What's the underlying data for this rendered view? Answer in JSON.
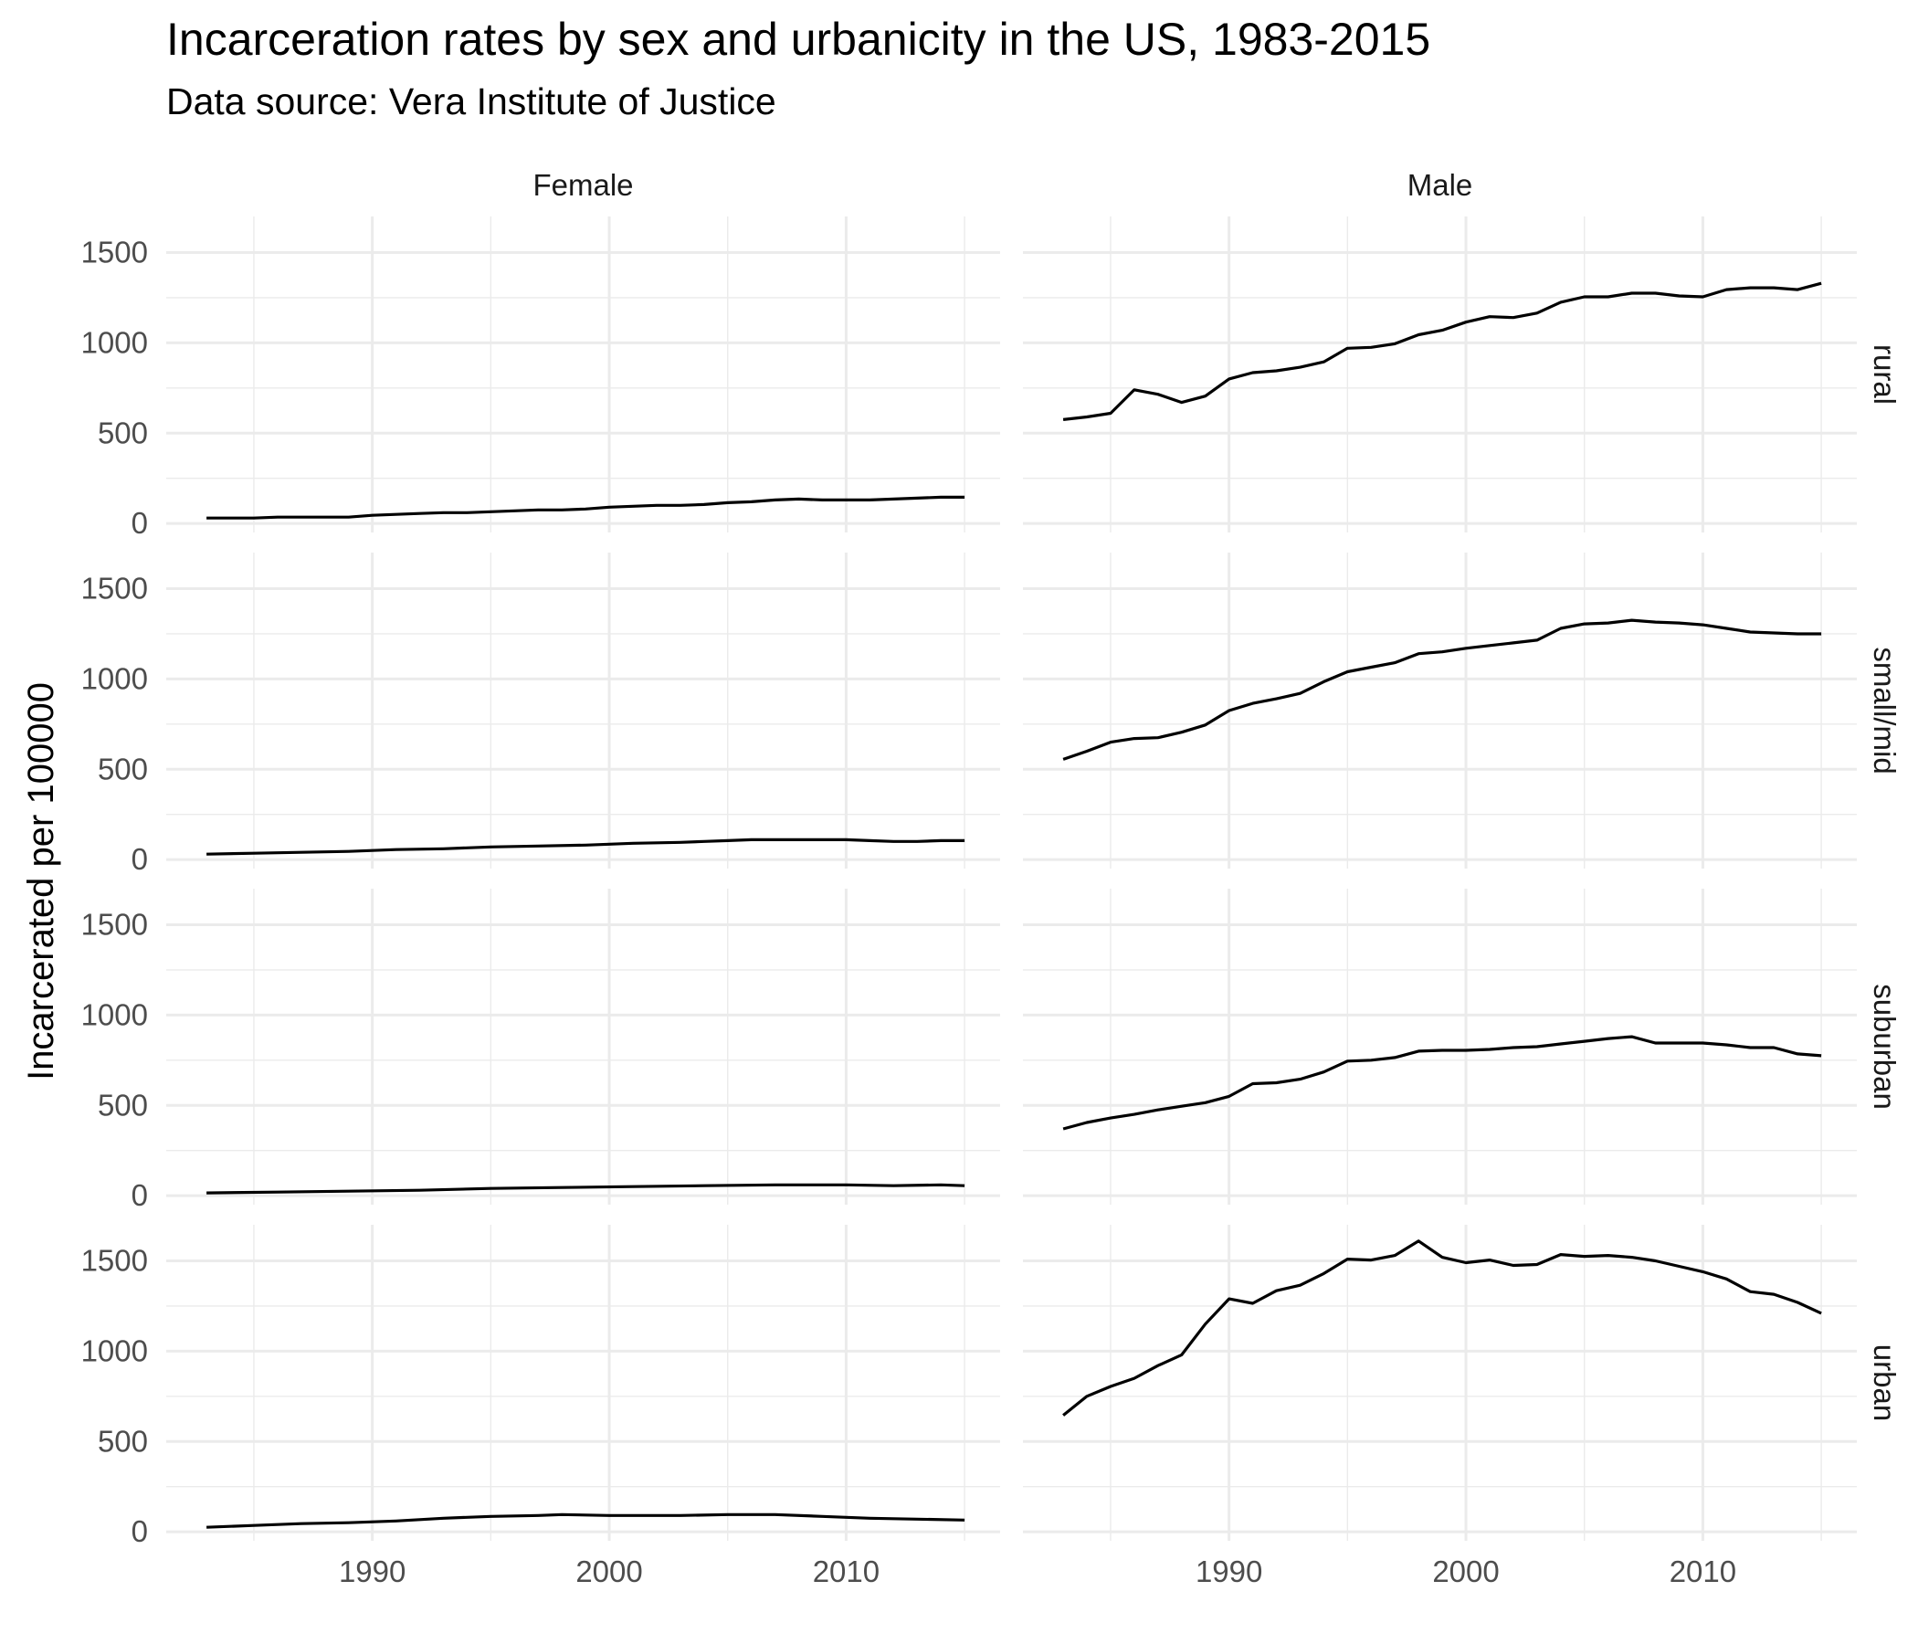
{
  "title": "Incarceration rates by sex and urbanicity in the US, 1983-2015",
  "subtitle": "Data source: Vera Institute of Justice",
  "chart_data": {
    "type": "line",
    "facet_columns": [
      "Female",
      "Male"
    ],
    "facet_rows": [
      "rural",
      "small/mid",
      "suburban",
      "urban"
    ],
    "ylabel": "Incarcerated per 100000",
    "xlabel": "",
    "xlim": [
      1981.3,
      2016.5
    ],
    "ylim": [
      -50,
      1700
    ],
    "x_ticks": [
      1990,
      2000,
      2010
    ],
    "y_ticks": [
      0,
      500,
      1000,
      1500
    ],
    "grid": true,
    "series_color": "#000000",
    "grid_color": "#ebebeb",
    "panels": [
      {
        "sex": "Female",
        "urbanicity": "rural",
        "x": [
          1983,
          1985,
          1986,
          1987,
          1988,
          1989,
          1990,
          1991,
          1992,
          1993,
          1994,
          1995,
          1996,
          1997,
          1998,
          1999,
          2000,
          2001,
          2002,
          2003,
          2004,
          2005,
          2006,
          2007,
          2008,
          2009,
          2010,
          2011,
          2012,
          2013,
          2014,
          2015
        ],
        "y": [
          30,
          30,
          35,
          35,
          35,
          35,
          45,
          50,
          55,
          60,
          60,
          65,
          70,
          75,
          75,
          80,
          90,
          95,
          100,
          100,
          105,
          115,
          120,
          130,
          135,
          130,
          130,
          130,
          135,
          140,
          145,
          145
        ]
      },
      {
        "sex": "Male",
        "urbanicity": "rural",
        "x": [
          1983,
          1984,
          1985,
          1986,
          1987,
          1988,
          1989,
          1990,
          1991,
          1992,
          1993,
          1994,
          1995,
          1996,
          1997,
          1998,
          1999,
          2000,
          2001,
          2002,
          2003,
          2004,
          2005,
          2006,
          2007,
          2008,
          2009,
          2010,
          2011,
          2012,
          2013,
          2014,
          2015
        ],
        "y": [
          575,
          590,
          610,
          740,
          715,
          670,
          705,
          800,
          835,
          845,
          865,
          895,
          970,
          975,
          995,
          1045,
          1070,
          1115,
          1145,
          1140,
          1165,
          1225,
          1255,
          1255,
          1275,
          1275,
          1260,
          1255,
          1295,
          1305,
          1305,
          1295,
          1330
        ]
      },
      {
        "sex": "Female",
        "urbanicity": "small/mid",
        "x": [
          1983,
          1985,
          1987,
          1989,
          1991,
          1993,
          1995,
          1997,
          1999,
          2001,
          2003,
          2004,
          2005,
          2006,
          2007,
          2008,
          2009,
          2010,
          2011,
          2012,
          2013,
          2014,
          2015
        ],
        "y": [
          30,
          35,
          40,
          45,
          55,
          60,
          70,
          75,
          80,
          90,
          95,
          100,
          105,
          110,
          110,
          110,
          110,
          110,
          105,
          100,
          100,
          105,
          105
        ]
      },
      {
        "sex": "Male",
        "urbanicity": "small/mid",
        "x": [
          1983,
          1984,
          1985,
          1986,
          1987,
          1988,
          1989,
          1990,
          1991,
          1992,
          1993,
          1994,
          1995,
          1996,
          1997,
          1998,
          1999,
          2000,
          2001,
          2002,
          2003,
          2004,
          2005,
          2006,
          2007,
          2008,
          2009,
          2010,
          2011,
          2012,
          2013,
          2014,
          2015
        ],
        "y": [
          555,
          600,
          650,
          670,
          675,
          705,
          745,
          825,
          865,
          890,
          920,
          985,
          1040,
          1065,
          1090,
          1140,
          1150,
          1170,
          1185,
          1200,
          1215,
          1280,
          1305,
          1310,
          1325,
          1315,
          1310,
          1300,
          1280,
          1260,
          1255,
          1250,
          1250
        ]
      },
      {
        "sex": "Female",
        "urbanicity": "suburban",
        "x": [
          1983,
          1986,
          1989,
          1992,
          1995,
          1998,
          2001,
          2004,
          2007,
          2010,
          2012,
          2014,
          2015
        ],
        "y": [
          15,
          20,
          25,
          30,
          40,
          45,
          50,
          55,
          60,
          60,
          55,
          60,
          55
        ]
      },
      {
        "sex": "Male",
        "urbanicity": "suburban",
        "x": [
          1983,
          1984,
          1985,
          1986,
          1987,
          1988,
          1989,
          1990,
          1991,
          1992,
          1993,
          1994,
          1995,
          1996,
          1997,
          1998,
          1999,
          2000,
          2001,
          2002,
          2003,
          2004,
          2005,
          2006,
          2007,
          2008,
          2009,
          2010,
          2011,
          2012,
          2013,
          2014,
          2015
        ],
        "y": [
          370,
          405,
          430,
          450,
          475,
          495,
          515,
          550,
          620,
          625,
          645,
          685,
          745,
          750,
          765,
          800,
          805,
          805,
          810,
          820,
          825,
          840,
          855,
          870,
          880,
          845,
          845,
          845,
          835,
          820,
          820,
          785,
          775
        ]
      },
      {
        "sex": "Female",
        "urbanicity": "urban",
        "x": [
          1983,
          1985,
          1987,
          1989,
          1991,
          1993,
          1995,
          1997,
          1998,
          2000,
          2002,
          2003,
          2005,
          2007,
          2009,
          2011,
          2013,
          2015
        ],
        "y": [
          25,
          35,
          45,
          50,
          60,
          75,
          85,
          90,
          95,
          90,
          90,
          90,
          95,
          95,
          85,
          75,
          70,
          65
        ]
      },
      {
        "sex": "Male",
        "urbanicity": "urban",
        "x": [
          1983,
          1984,
          1985,
          1986,
          1987,
          1988,
          1989,
          1990,
          1991,
          1992,
          1993,
          1994,
          1995,
          1996,
          1997,
          1998,
          1999,
          2000,
          2001,
          2002,
          2003,
          2004,
          2005,
          2006,
          2007,
          2008,
          2009,
          2010,
          2011,
          2012,
          2013,
          2014,
          2015
        ],
        "y": [
          645,
          750,
          805,
          850,
          920,
          980,
          1150,
          1290,
          1265,
          1335,
          1365,
          1430,
          1510,
          1505,
          1530,
          1610,
          1520,
          1490,
          1505,
          1475,
          1480,
          1535,
          1525,
          1530,
          1520,
          1500,
          1470,
          1440,
          1400,
          1330,
          1315,
          1270,
          1210
        ]
      }
    ]
  }
}
